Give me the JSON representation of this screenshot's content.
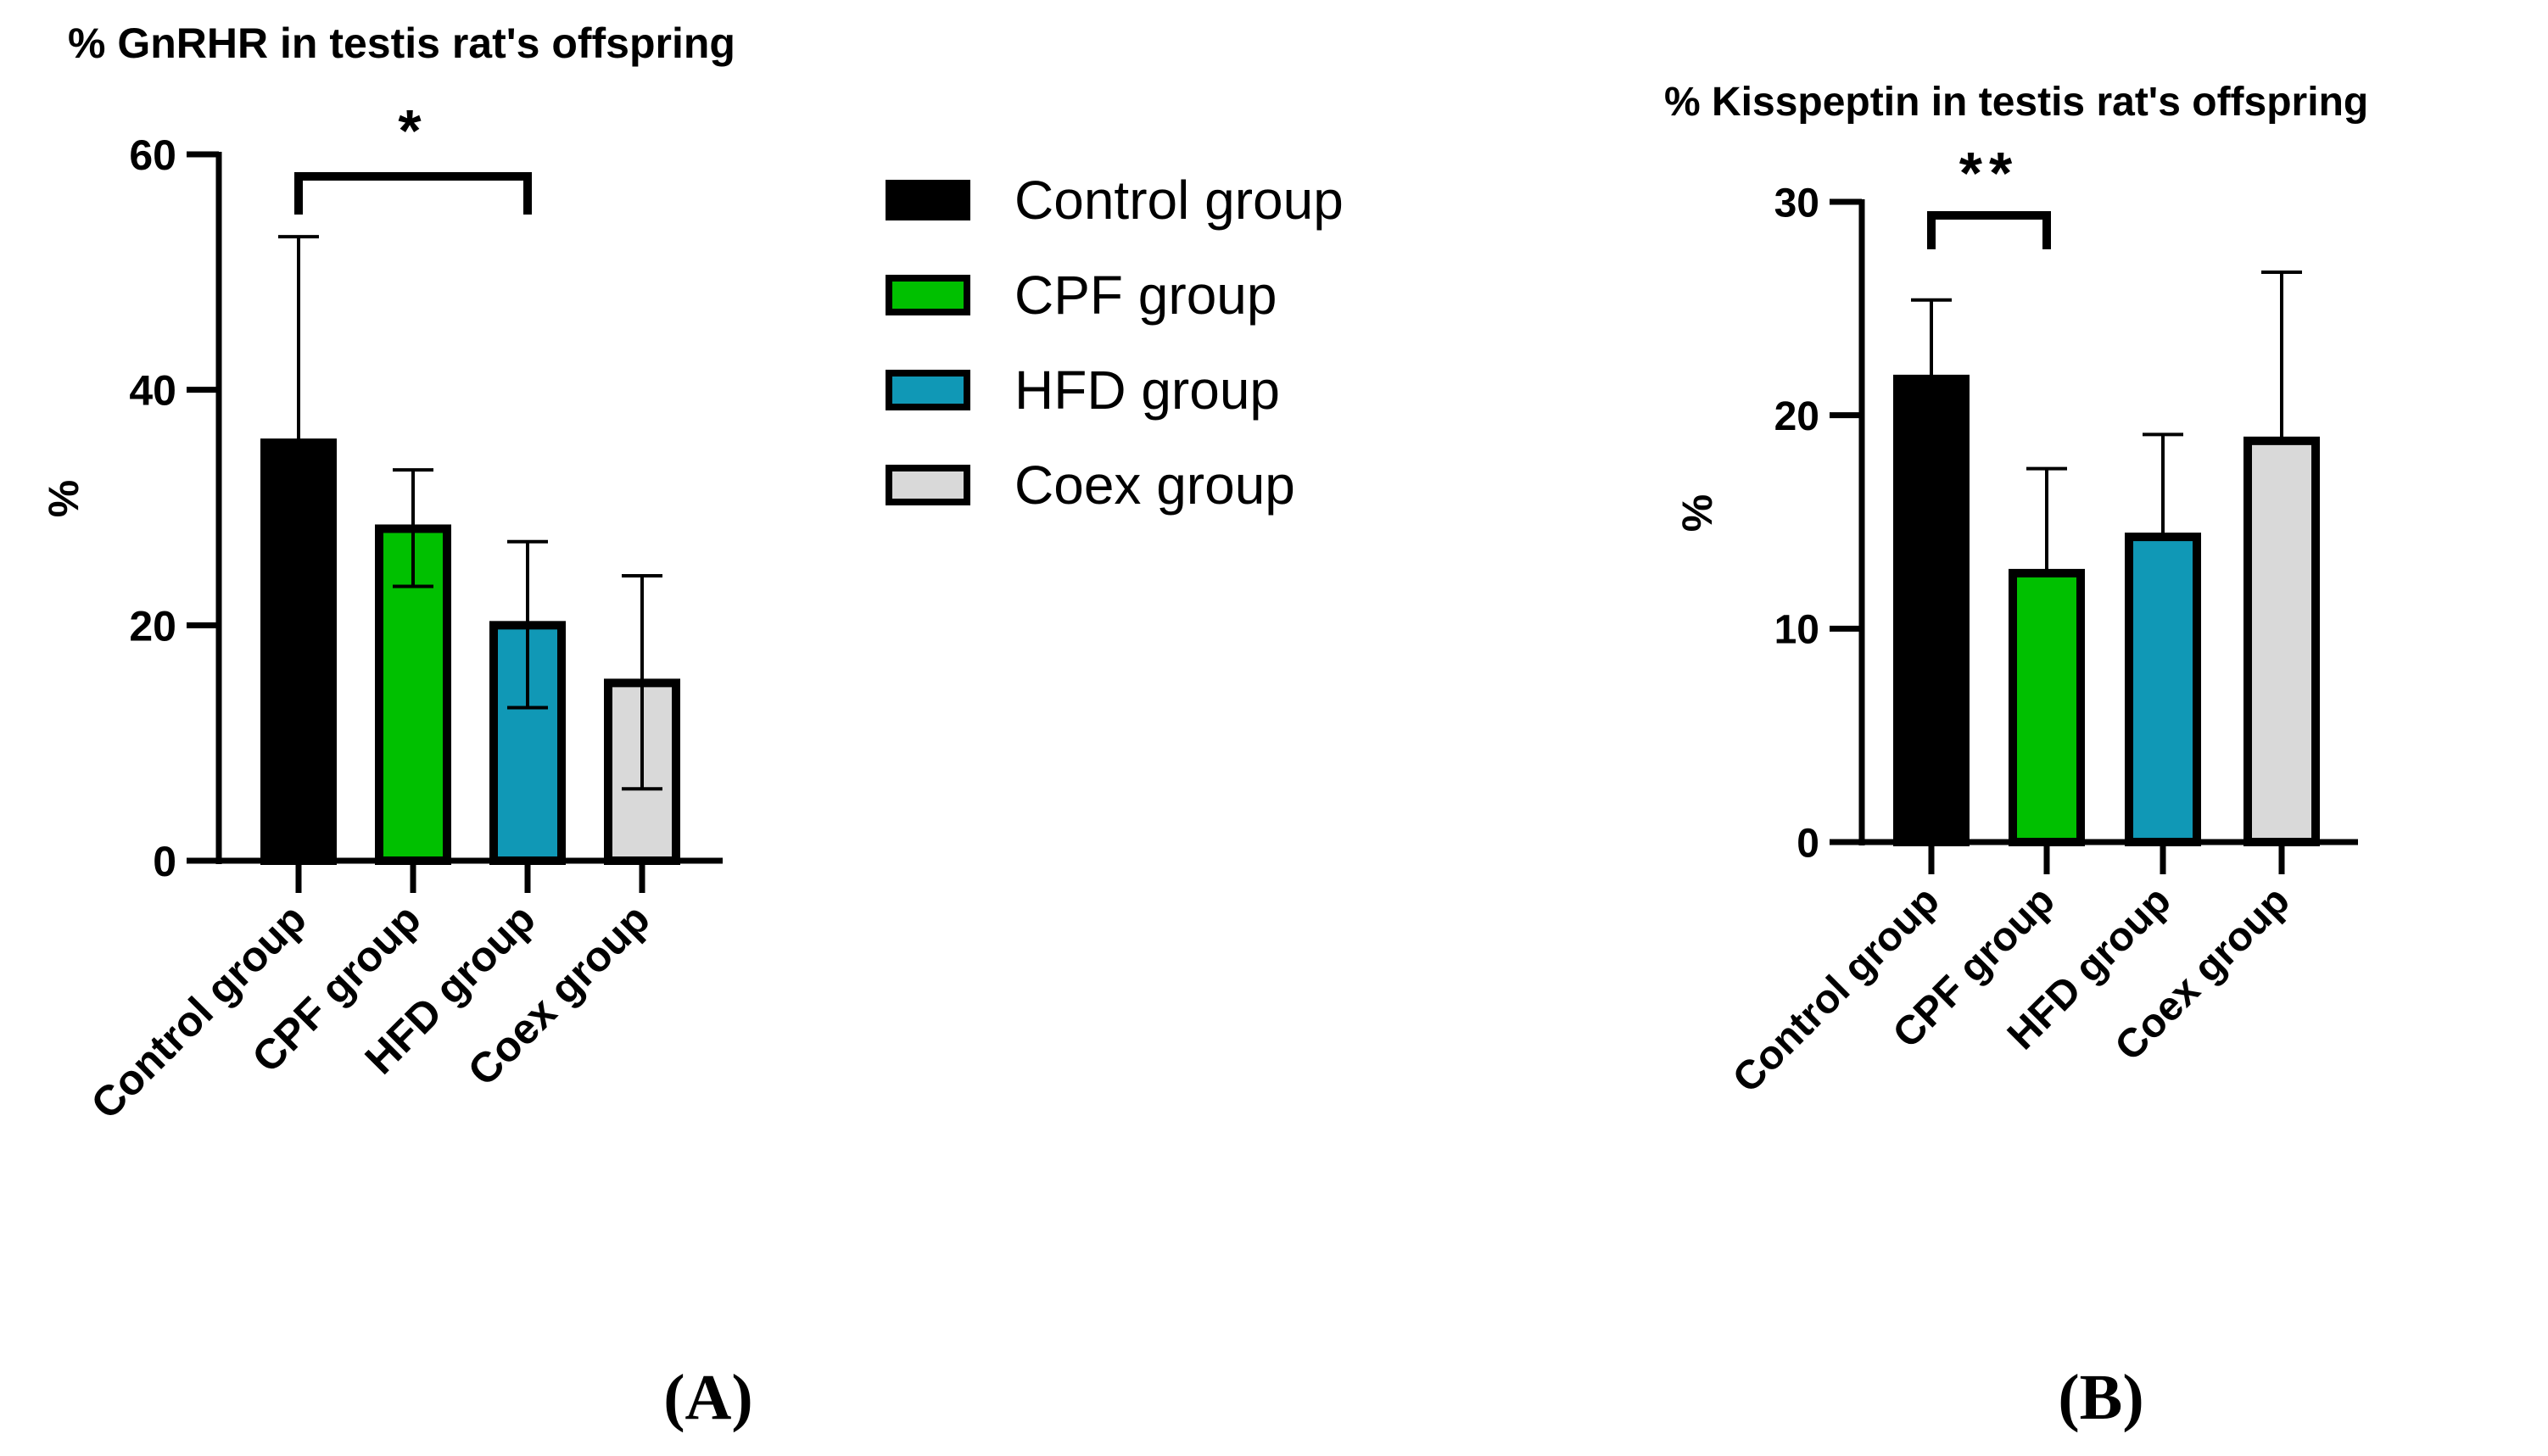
{
  "legend": {
    "items": [
      {
        "label": "Control group",
        "color": "#000000"
      },
      {
        "label": "CPF group",
        "color": "#00c000"
      },
      {
        "label": "HFD group",
        "color": "#1098b6"
      },
      {
        "label": "Coex group",
        "color": "#d9d9d9"
      }
    ]
  },
  "chart_data": [
    {
      "type": "bar",
      "title": "% GnRHR in testis rat's offspring",
      "panel_label": "(A)",
      "ylabel": "%",
      "xlabel": "",
      "ylim": [
        0,
        60
      ],
      "yticks": [
        0,
        20,
        40,
        60
      ],
      "categories": [
        "Control group",
        "CPF group",
        "HFD group",
        "Coex group"
      ],
      "values": [
        35.5,
        28.2,
        20.0,
        15.1
      ],
      "error_upper": [
        53.0,
        33.2,
        27.1,
        24.2
      ],
      "error_lower": [
        null,
        23.3,
        13.0,
        6.1
      ],
      "colors": [
        "#000000",
        "#00c000",
        "#1098b6",
        "#d9d9d9"
      ],
      "significance": [
        {
          "from": 0,
          "to": 2,
          "label": "*"
        }
      ]
    },
    {
      "type": "bar",
      "title": "% Kisspeptin in testis rat's offspring",
      "panel_label": "(B)",
      "ylabel": "%",
      "xlabel": "",
      "ylim": [
        0,
        30
      ],
      "yticks": [
        0,
        10,
        20,
        30
      ],
      "categories": [
        "Control group",
        "CPF group",
        "HFD group",
        "Coex group"
      ],
      "values": [
        21.7,
        12.6,
        14.3,
        18.8
      ],
      "error_upper": [
        25.4,
        17.5,
        19.1,
        26.7
      ],
      "error_lower": [
        null,
        null,
        null,
        null
      ],
      "colors": [
        "#000000",
        "#00c000",
        "#1098b6",
        "#d9d9d9"
      ],
      "significance": [
        {
          "from": 0,
          "to": 1,
          "label": "**"
        }
      ]
    }
  ]
}
